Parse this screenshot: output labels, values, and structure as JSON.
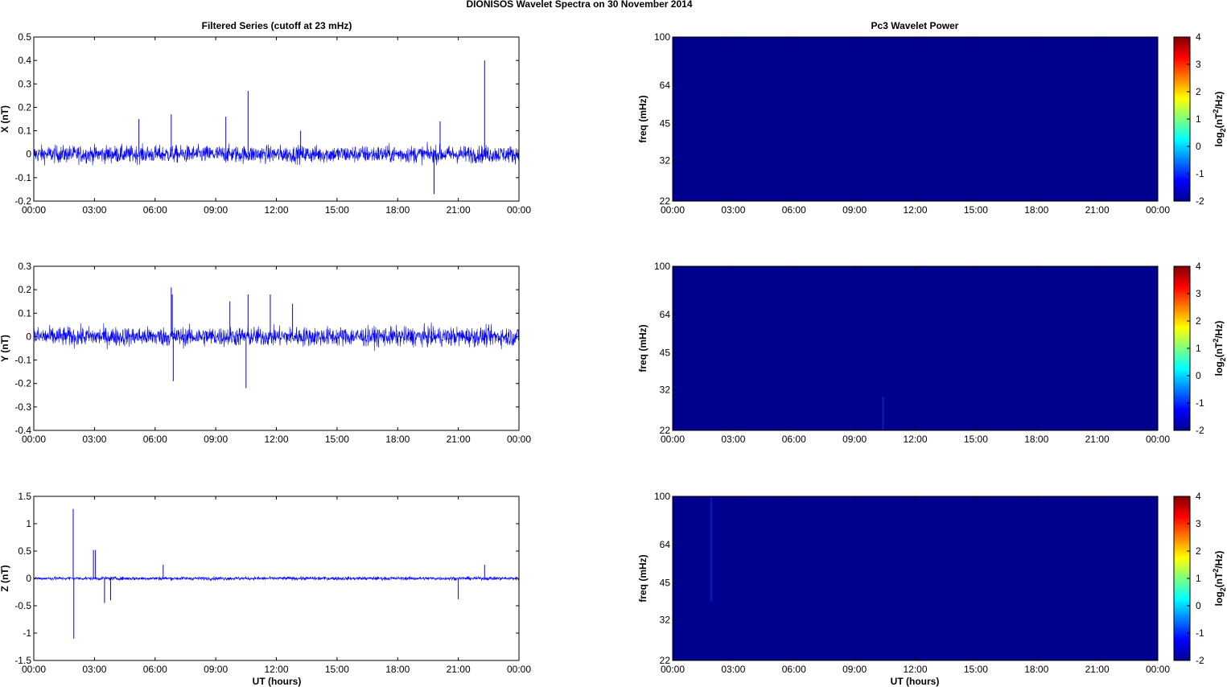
{
  "title": "DIONISOS Wavelet Spectra on 30 November  2014",
  "left_title": "Filtered Series (cutoff at 23 mHz)",
  "right_title": "Pc3 Wavelet Power",
  "xlabel": "UT (hours)",
  "colors": {
    "trace": "#0000ff",
    "spectrum_bg": "#00008f",
    "spectrum_feature": "#0a1aa8"
  },
  "chart_data": [
    {
      "type": "line",
      "ylabel": "X (nT)",
      "ylim": [
        -0.2,
        0.5
      ],
      "yticks": [
        "0.5",
        "0.4",
        "0.3",
        "0.2",
        "0.1",
        "0",
        "-0.1",
        "-0.2"
      ],
      "xticks": [
        "00:00",
        "03:00",
        "06:00",
        "09:00",
        "12:00",
        "15:00",
        "18:00",
        "21:00",
        "00:00"
      ],
      "xlim_hours": [
        0,
        24
      ],
      "noise_amplitude": 0.045,
      "series": [
        {
          "x_hours": [
            5.2,
            6.8,
            9.5,
            10.6,
            13.2,
            19.8,
            20.1,
            22.3
          ],
          "spike_values": [
            0.15,
            0.17,
            0.16,
            0.27,
            0.1,
            -0.17,
            0.14,
            0.4
          ]
        }
      ]
    },
    {
      "type": "line",
      "ylabel": "Y (nT)",
      "ylim": [
        -0.4,
        0.3
      ],
      "yticks": [
        "0.3",
        "0.2",
        "0.1",
        "0",
        "-0.1",
        "-0.2",
        "-0.3",
        "-0.4"
      ],
      "xticks": [
        "00:00",
        "03:00",
        "06:00",
        "09:00",
        "12:00",
        "15:00",
        "18:00",
        "21:00",
        "00:00"
      ],
      "xlim_hours": [
        0,
        24
      ],
      "noise_amplitude": 0.05,
      "series": [
        {
          "x_hours": [
            6.8,
            6.9,
            6.85,
            9.7,
            10.5,
            10.6,
            11.7,
            12.8
          ],
          "spike_values": [
            0.21,
            -0.19,
            0.18,
            0.15,
            -0.22,
            0.18,
            0.18,
            0.14
          ]
        }
      ]
    },
    {
      "type": "line",
      "ylabel": "Z (nT)",
      "ylim": [
        -1.5,
        1.5
      ],
      "yticks": [
        "1.5",
        "1",
        "0.5",
        "0",
        "-0.5",
        "-1",
        "-1.5"
      ],
      "xticks": [
        "00:00",
        "03:00",
        "06:00",
        "09:00",
        "12:00",
        "15:00",
        "18:00",
        "21:00",
        "00:00"
      ],
      "xlim_hours": [
        0,
        24
      ],
      "noise_amplitude": 0.04,
      "series": [
        {
          "x_hours": [
            1.95,
            1.98,
            2.95,
            3.05,
            3.5,
            3.8,
            6.4,
            21.0,
            22.3
          ],
          "spike_values": [
            1.27,
            -1.1,
            0.52,
            0.52,
            -0.45,
            -0.4,
            0.25,
            -0.38,
            0.25
          ]
        }
      ]
    },
    {
      "type": "heatmap",
      "ylabel": "freq (mHz)",
      "yticks": [
        "100",
        "64",
        "45",
        "32",
        "22"
      ],
      "xticks": [
        "00:00",
        "03:00",
        "06:00",
        "09:00",
        "12:00",
        "15:00",
        "18:00",
        "21:00",
        "00:00"
      ],
      "colorbar_label": "log2(nT2/Hz)",
      "colorbar_ticks": [
        "4",
        "3",
        "2",
        "1",
        "0",
        "-1",
        "-2"
      ],
      "clim": [
        -2,
        4
      ],
      "value": -2,
      "features": []
    },
    {
      "type": "heatmap",
      "ylabel": "freq (mHz)",
      "yticks": [
        "100",
        "64",
        "45",
        "32",
        "22"
      ],
      "xticks": [
        "00:00",
        "03:00",
        "06:00",
        "09:00",
        "12:00",
        "15:00",
        "18:00",
        "21:00",
        "00:00"
      ],
      "colorbar_label": "log2(nT2/Hz)",
      "colorbar_ticks": [
        "4",
        "3",
        "2",
        "1",
        "0",
        "-1",
        "-2"
      ],
      "clim": [
        -2,
        4
      ],
      "value": -2,
      "features": [
        {
          "x_hour": 10.4,
          "freq_from": 22,
          "freq_to": 30
        }
      ]
    },
    {
      "type": "heatmap",
      "ylabel": "freq (mHz)",
      "yticks": [
        "100",
        "64",
        "45",
        "32",
        "22"
      ],
      "xticks": [
        "00:00",
        "03:00",
        "06:00",
        "09:00",
        "12:00",
        "15:00",
        "18:00",
        "21:00",
        "00:00"
      ],
      "colorbar_label": "log2(nT2/Hz)",
      "colorbar_ticks": [
        "4",
        "3",
        "2",
        "1",
        "0",
        "-1",
        "-2"
      ],
      "clim": [
        -2,
        4
      ],
      "value": -2,
      "features": [
        {
          "x_hour": 1.9,
          "freq_from": 38,
          "freq_to": 100
        }
      ]
    }
  ]
}
